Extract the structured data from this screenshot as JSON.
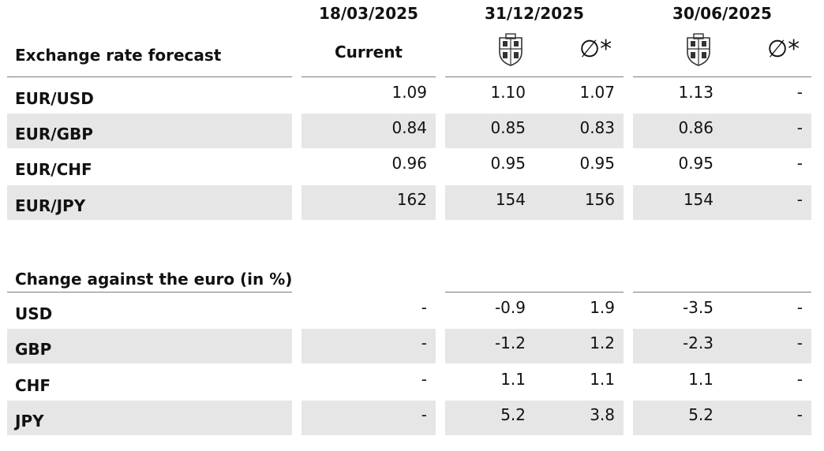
{
  "header": {
    "dates": [
      "18/03/2025",
      "31/12/2025",
      "30/06/2025"
    ],
    "current_label": "Current",
    "avg_symbol": "∅*",
    "bank_icon": "bank-crest-icon"
  },
  "forecast": {
    "title": "Exchange rate forecast",
    "rows": [
      {
        "label": "EUR/USD",
        "values": [
          "1.09",
          "1.10",
          "1.07",
          "1.13",
          "-"
        ]
      },
      {
        "label": "EUR/GBP",
        "values": [
          "0.84",
          "0.85",
          "0.83",
          "0.86",
          "-"
        ]
      },
      {
        "label": "EUR/CHF",
        "values": [
          "0.96",
          "0.95",
          "0.95",
          "0.95",
          "-"
        ]
      },
      {
        "label": "EUR/JPY",
        "values": [
          "162",
          "154",
          "156",
          "154",
          "-"
        ]
      }
    ]
  },
  "change": {
    "title": "Change against the euro (in %)",
    "rows": [
      {
        "label": "USD",
        "values": [
          "-",
          "-0.9",
          "1.9",
          "-3.5",
          "-"
        ]
      },
      {
        "label": "GBP",
        "values": [
          "-",
          "-1.2",
          "1.2",
          "-2.3",
          "-"
        ]
      },
      {
        "label": "CHF",
        "values": [
          "-",
          "1.1",
          "1.1",
          "1.1",
          "-"
        ]
      },
      {
        "label": "JPY",
        "values": [
          "-",
          "5.2",
          "3.8",
          "5.2",
          "-"
        ]
      }
    ]
  },
  "colors": {
    "band": "#e6e6e6",
    "rule": "#7a7a7a",
    "text": "#111111"
  }
}
